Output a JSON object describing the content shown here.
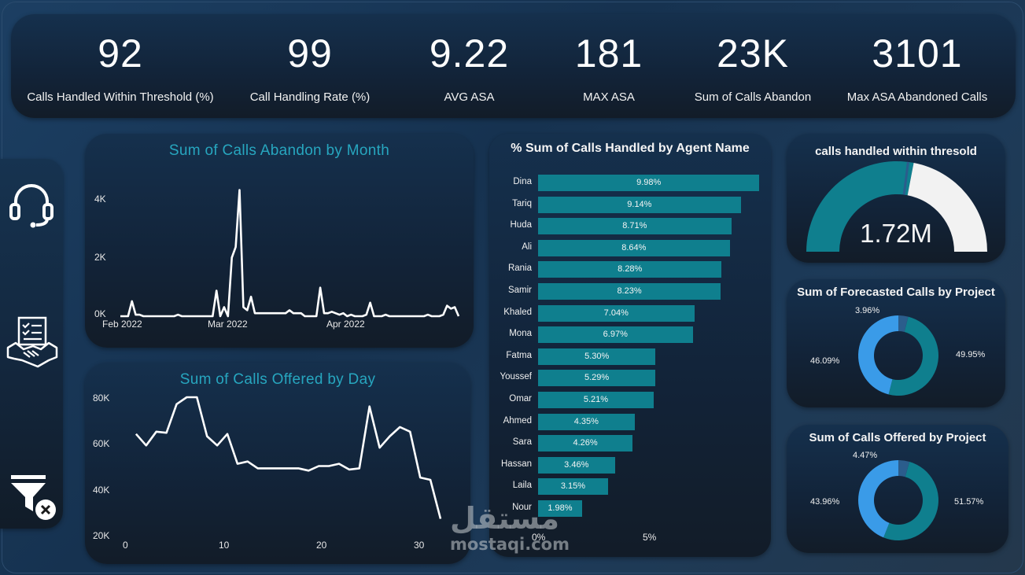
{
  "kpis": [
    {
      "value": "92",
      "label": "Calls Handled Within Threshold (%)"
    },
    {
      "value": "99",
      "label": "Call Handling Rate (%)"
    },
    {
      "value": "9.22",
      "label": "AVG ASA"
    },
    {
      "value": "181",
      "label": "MAX ASA"
    },
    {
      "value": "23K",
      "label": "Sum of Calls Abandon"
    },
    {
      "value": "3101",
      "label": "Max ASA Abandoned Calls"
    }
  ],
  "sidebar": {
    "icons": [
      "headset-icon",
      "checklist-handshake-icon",
      "clear-filter-icon"
    ]
  },
  "colors": {
    "teal": "#0f7f8e",
    "blue": "#3a9be8",
    "navy": "#2b5d8c",
    "white": "#f2f2f2",
    "title_teal": "#27a6bf"
  },
  "chart_data": [
    {
      "type": "line",
      "title": "Sum of Calls Abandon by Month",
      "x_tick_labels": [
        "Feb 2022",
        "Mar 2022",
        "Apr 2022"
      ],
      "y_tick_labels": [
        "4K",
        "2K",
        "0K"
      ],
      "ylim": [
        0,
        4500
      ],
      "x": [
        1,
        2,
        3,
        4,
        5,
        6,
        7,
        8,
        9,
        10,
        11,
        12,
        13,
        14,
        15,
        16,
        17,
        18,
        19,
        20,
        21,
        22,
        23,
        24,
        25,
        26,
        27,
        28,
        29,
        30,
        31,
        32,
        33,
        34,
        35,
        36,
        37,
        38,
        39,
        40,
        41,
        42,
        43,
        44,
        45,
        46,
        47,
        48,
        49,
        50,
        51,
        52,
        53,
        54,
        55,
        56,
        57,
        58,
        59,
        60,
        61,
        62,
        63,
        64,
        65,
        66,
        67,
        68,
        69,
        70,
        71,
        72,
        73,
        74,
        75,
        76,
        77,
        78,
        79,
        80,
        81,
        82,
        83,
        84,
        85,
        86,
        87,
        88,
        89
      ],
      "values": [
        0,
        0,
        0,
        500,
        50,
        50,
        0,
        0,
        0,
        0,
        0,
        0,
        0,
        0,
        0,
        50,
        0,
        0,
        0,
        0,
        0,
        0,
        0,
        0,
        0,
        850,
        0,
        300,
        0,
        1950,
        2300,
        4200,
        300,
        200,
        650,
        100,
        100,
        100,
        100,
        100,
        100,
        100,
        100,
        100,
        200,
        100,
        100,
        100,
        0,
        0,
        0,
        0,
        950,
        100,
        100,
        150,
        100,
        50,
        100,
        0,
        50,
        0,
        0,
        0,
        50,
        450,
        0,
        0,
        0,
        50,
        0,
        0,
        0,
        0,
        0,
        0,
        0,
        0,
        0,
        0,
        50,
        0,
        0,
        0,
        50,
        350,
        250,
        300,
        0
      ]
    },
    {
      "type": "line",
      "title": "Sum of Calls Offered by Day",
      "x": [
        1,
        2,
        3,
        4,
        5,
        6,
        7,
        8,
        9,
        10,
        11,
        12,
        13,
        14,
        15,
        16,
        17,
        18,
        19,
        20,
        21,
        22,
        23,
        24,
        25,
        26,
        27,
        28,
        29,
        30,
        31
      ],
      "values": [
        64000,
        59000,
        65000,
        64500,
        77000,
        80000,
        80000,
        63000,
        59000,
        64000,
        51000,
        52000,
        49000,
        49000,
        49000,
        49000,
        49000,
        48000,
        50000,
        50000,
        51000,
        48500,
        49000,
        76000,
        58000,
        63000,
        67000,
        65000,
        45000,
        44000,
        27000
      ],
      "x_tick_labels": [
        "0",
        "10",
        "20",
        "30"
      ],
      "y_tick_labels": [
        "80K",
        "60K",
        "40K",
        "20K"
      ],
      "ylim": [
        20000,
        80000
      ],
      "xlim": [
        0,
        31
      ]
    },
    {
      "type": "bar",
      "title": "% Sum of Calls Handled by Agent Name",
      "categories": [
        "Dina",
        "Tariq",
        "Huda",
        "Ali",
        "Rania",
        "Samir",
        "Khaled",
        "Mona",
        "Fatma",
        "Youssef",
        "Omar",
        "Ahmed",
        "Sara",
        "Hassan",
        "Laila",
        "Nour"
      ],
      "values": [
        9.98,
        9.14,
        8.71,
        8.64,
        8.28,
        8.23,
        7.04,
        6.97,
        5.3,
        5.29,
        5.21,
        4.35,
        4.26,
        3.46,
        3.15,
        1.98
      ],
      "value_labels": [
        "9.98%",
        "9.14%",
        "8.71%",
        "8.64%",
        "8.28%",
        "8.23%",
        "7.04%",
        "6.97%",
        "5.30%",
        "5.29%",
        "5.21%",
        "4.35%",
        "4.26%",
        "3.46%",
        "3.15%",
        "1.98%"
      ],
      "x_tick_labels": [
        "0%",
        "5%"
      ],
      "xlim": [
        0,
        10
      ]
    },
    {
      "type": "gauge",
      "title": "calls handled within thresold",
      "value_label": "1.72M",
      "fraction": 0.56,
      "target_fraction": 0.54
    },
    {
      "type": "pie",
      "title": "Sum of Forecasted Calls by Project",
      "values": [
        49.95,
        46.09,
        3.96
      ],
      "labels": [
        "49.95%",
        "46.09%",
        "3.96%"
      ]
    },
    {
      "type": "pie",
      "title": "Sum of Calls Offered by Project",
      "values": [
        51.57,
        43.96,
        4.47
      ],
      "labels": [
        "51.57%",
        "43.96%",
        "4.47%"
      ]
    }
  ],
  "watermark": {
    "arabic": "مستقل",
    "latin": "mostaqi.com"
  }
}
